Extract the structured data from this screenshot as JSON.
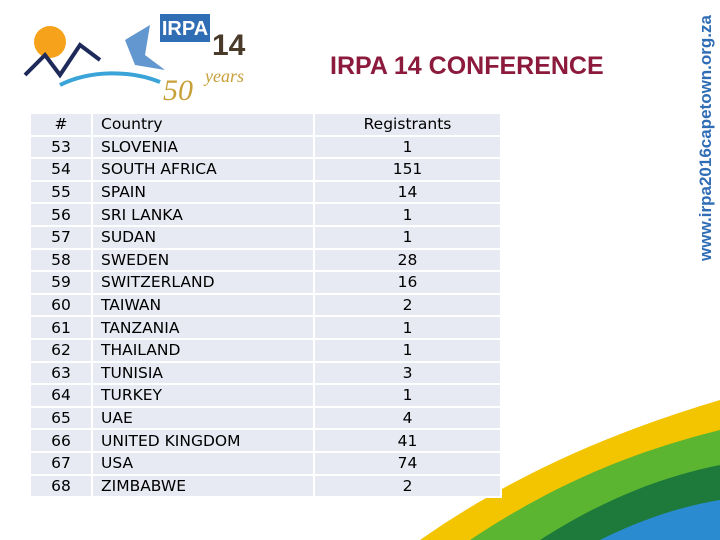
{
  "logo": {
    "name": "IRPA",
    "number": "14",
    "anniversary": "50",
    "anniversary_word": "years"
  },
  "title": "IRPA 14 CONFERENCE",
  "website": "www.irpa2016capetown.org.za",
  "table": {
    "header": [
      "#",
      "Country",
      "Registrants"
    ],
    "rows": [
      [
        53,
        "SLOVENIA",
        1
      ],
      [
        54,
        "SOUTH AFRICA",
        151
      ],
      [
        55,
        "SPAIN",
        14
      ],
      [
        56,
        "SRI LANKA",
        1
      ],
      [
        57,
        "SUDAN",
        1
      ],
      [
        58,
        "SWEDEN",
        28
      ],
      [
        59,
        "SWITZERLAND",
        16
      ],
      [
        60,
        "TAIWAN",
        2
      ],
      [
        61,
        "TANZANIA",
        1
      ],
      [
        62,
        "THAILAND",
        1
      ],
      [
        63,
        "TUNISIA",
        3
      ],
      [
        64,
        "TURKEY",
        1
      ],
      [
        65,
        "UAE",
        4
      ],
      [
        66,
        "UNITED KINGDOM",
        41
      ],
      [
        67,
        "USA",
        74
      ],
      [
        68,
        "ZIMBABWE",
        2
      ]
    ]
  }
}
